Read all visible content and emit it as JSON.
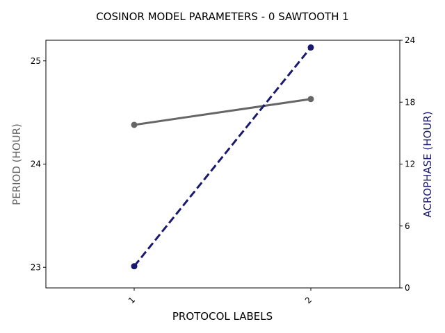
{
  "chart_data": {
    "type": "line",
    "title": "COSINOR MODEL PARAMETERS - 0 SAWTOOTH 1",
    "xlabel": "PROTOCOL LABELS",
    "categories": [
      "1",
      "2"
    ],
    "left_axis": {
      "label": "PERIOD (HOUR)",
      "range": [
        22.8,
        25.2
      ],
      "ticks": [
        "23",
        "24",
        "25"
      ],
      "color": "#666666"
    },
    "right_axis": {
      "label": "ACROPHASE (HOUR)",
      "range": [
        0,
        24
      ],
      "ticks": [
        "0",
        "6",
        "12",
        "18",
        "24"
      ],
      "color": "#191970"
    },
    "series": [
      {
        "axis": "left",
        "values": [
          24.38,
          24.63
        ],
        "color": "#666666",
        "dash": "solid"
      },
      {
        "axis": "right",
        "values": [
          2.1,
          23.3
        ],
        "color": "#191970",
        "dash": "dashed"
      }
    ],
    "grid": false,
    "legend": "none"
  }
}
